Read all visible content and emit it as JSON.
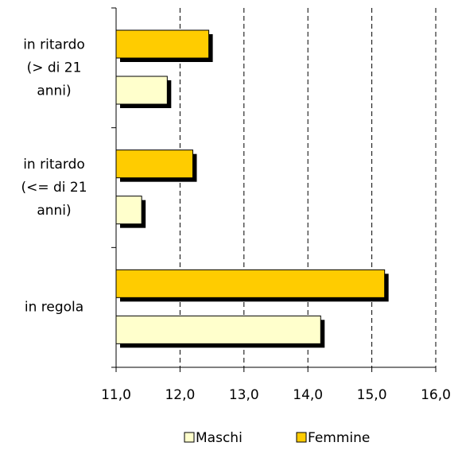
{
  "chart_data": {
    "type": "barh",
    "categories": [
      [
        "in ritardo",
        "(> di 21",
        "anni)"
      ],
      [
        "in ritardo",
        "(<= di 21",
        "anni)"
      ],
      [
        "in regola"
      ]
    ],
    "series": [
      {
        "name": "Maschi",
        "color": "#ffffcc",
        "values": [
          11.8,
          11.4,
          14.2
        ]
      },
      {
        "name": "Femmine",
        "color": "#ffcc00",
        "values": [
          12.45,
          12.2,
          15.2
        ]
      }
    ],
    "xlim": [
      11,
      16
    ],
    "xticks": [
      {
        "value": 11,
        "label": "11,0"
      },
      {
        "value": 12,
        "label": "12,0"
      },
      {
        "value": 13,
        "label": "13,0"
      },
      {
        "value": 14,
        "label": "14,0"
      },
      {
        "value": 15,
        "label": "15,0"
      },
      {
        "value": 16,
        "label": "16,0"
      }
    ],
    "grid": true,
    "legend": "bottom"
  }
}
